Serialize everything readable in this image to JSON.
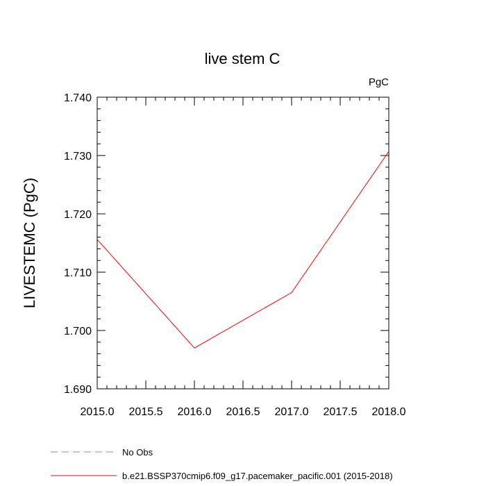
{
  "chart_data": {
    "type": "line",
    "title": "live stem C",
    "units": "PgC",
    "xlabel": "",
    "ylabel": "LIVESTEMC  (PgC)",
    "xlim": [
      2015.0,
      2018.0
    ],
    "ylim": [
      1.69,
      1.74
    ],
    "x_ticks": [
      "2015.0",
      "2015.5",
      "2016.0",
      "2016.5",
      "2017.0",
      "2017.5",
      "2018.0"
    ],
    "y_ticks": [
      "1.690",
      "1.700",
      "1.710",
      "1.720",
      "1.730",
      "1.740"
    ],
    "series": [
      {
        "name": "b.e21.BSSP370cmip6.f09_g17.pacemaker_pacific.001 (2015-2018)",
        "color": "#ff0000",
        "style": "solid",
        "x": [
          2015,
          2016,
          2017,
          2018
        ],
        "y": [
          1.7156,
          1.697,
          1.7065,
          1.7307
        ]
      }
    ],
    "legend": [
      {
        "label": "No Obs",
        "color": "#8080ff",
        "style": "dashed"
      },
      {
        "label": "b.e21.BSSP370cmip6.f09_g17.pacemaker_pacific.001 (2015-2018)",
        "color": "#ff0000",
        "style": "solid"
      }
    ],
    "legend_position": "bottom-left"
  }
}
